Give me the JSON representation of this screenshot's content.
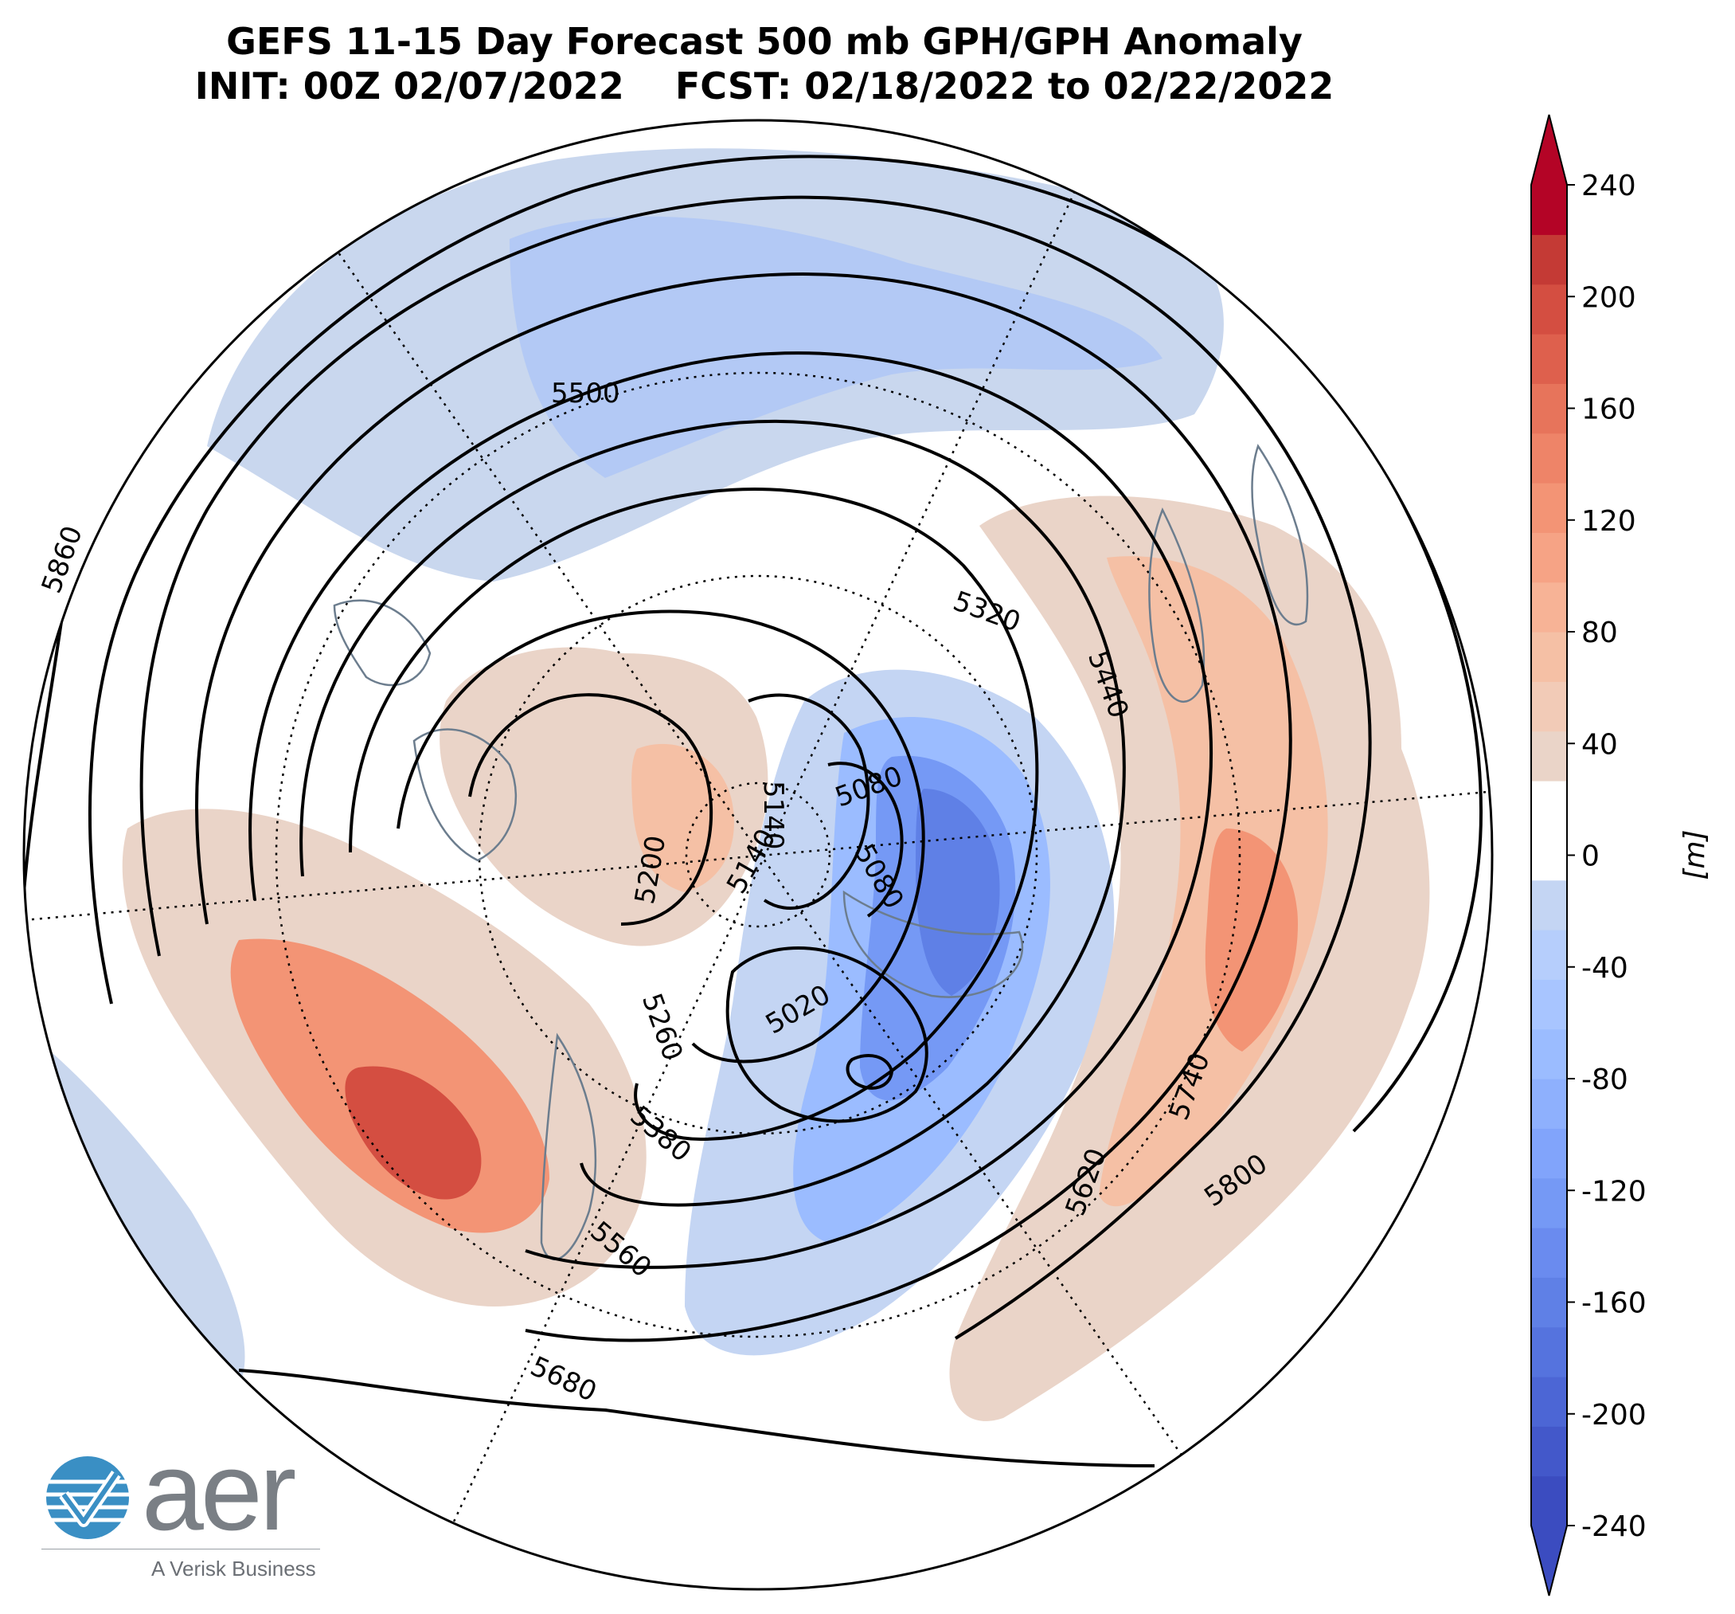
{
  "title": {
    "line1": "GEFS 11-15 Day Forecast 500 mb GPH/GPH Anomaly",
    "line2": "INIT: 00Z 02/07/2022    FCST: 02/18/2022 to 02/22/2022"
  },
  "colorbar": {
    "unit_label": "[m]",
    "ticks": [
      "240",
      "200",
      "160",
      "120",
      "80",
      "40",
      "0",
      "-40",
      "-80",
      "-120",
      "-160",
      "-200",
      "-240"
    ],
    "range": [
      -240,
      240
    ],
    "step": 20,
    "colors": [
      "#3b4cc0",
      "#4358ca",
      "#4c66d5",
      "#5573de",
      "#5f80e6",
      "#6a8bef",
      "#7599f5",
      "#81a4fb",
      "#8eb0fd",
      "#9bbcff",
      "#a8c5ff",
      "#b6cefc",
      "#c4d5f3",
      "#ffffff",
      "#ffffff",
      "#ead4c8",
      "#f2cbb7",
      "#f5c0a5",
      "#f7b396",
      "#f6a385",
      "#f39475",
      "#ee8468",
      "#e7745b",
      "#de604d",
      "#d44e41",
      "#c43a35",
      "#b40426"
    ]
  },
  "contour_labels": [
    "5860",
    "5500",
    "5320",
    "5440",
    "5080",
    "5140",
    "5140",
    "5200",
    "5080",
    "5020",
    "5260",
    "5380",
    "5560",
    "5680",
    "5620",
    "5740",
    "5800"
  ],
  "logo": {
    "wordmark": "aer",
    "tagline": "A Verisk Business",
    "icon": "aer-globe-check-icon"
  }
}
